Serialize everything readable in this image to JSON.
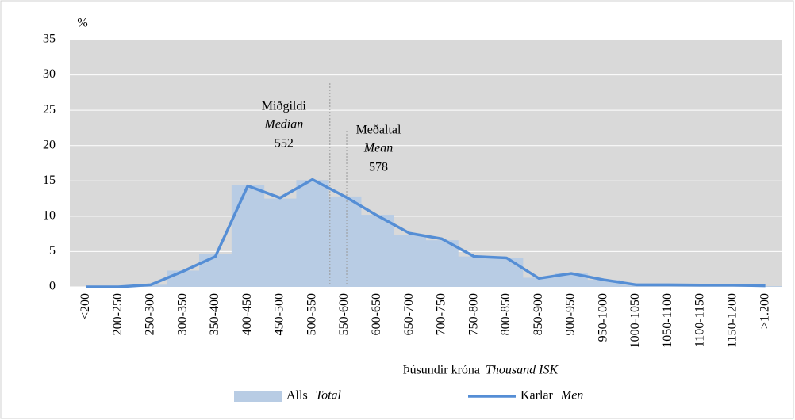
{
  "chart_data": {
    "type": "bar",
    "ylabel": "%",
    "xlabel": "Þúsundir króna",
    "xlabel_en": "Thousand ISK",
    "categories": [
      "<200",
      "200-250",
      "250-300",
      "300-350",
      "350-400",
      "400-450",
      "450-500",
      "500-550",
      "550-600",
      "600-650",
      "650-700",
      "700-750",
      "750-800",
      "800-850",
      "850-900",
      "900-950",
      "950-1000",
      "1000-1050",
      "1050-1100",
      "1100-1150",
      "1150-1200",
      ">1.200"
    ],
    "series": [
      {
        "name": "Alls",
        "name_en": "Total",
        "type": "bar",
        "color": "#b8cce4",
        "values": [
          0,
          0.1,
          0.3,
          2.3,
          4.7,
          14.4,
          12.5,
          15.1,
          12.8,
          10.2,
          7.4,
          6.6,
          4.3,
          4.1,
          1.3,
          1.9,
          1.0,
          0.3,
          0.3,
          0.2,
          0.2,
          0.1
        ]
      },
      {
        "name": "Karlar",
        "name_en": "Men",
        "type": "line",
        "color": "#558ed5",
        "values": [
          0,
          0,
          0.3,
          2.2,
          4.3,
          14.3,
          12.6,
          15.2,
          12.8,
          10.1,
          7.6,
          6.8,
          4.3,
          4.1,
          1.2,
          1.9,
          1.0,
          0.3,
          0.3,
          0.25,
          0.25,
          0.15
        ]
      }
    ],
    "annotations": [
      {
        "label": "Miðgildi",
        "label_en": "Median",
        "value": 552
      },
      {
        "label": "Meðaltal",
        "label_en": "Mean",
        "value": 578
      }
    ],
    "ylim": [
      0,
      35
    ],
    "yticks": [
      0,
      5,
      10,
      15,
      20,
      25,
      30,
      35
    ],
    "grid": true
  }
}
